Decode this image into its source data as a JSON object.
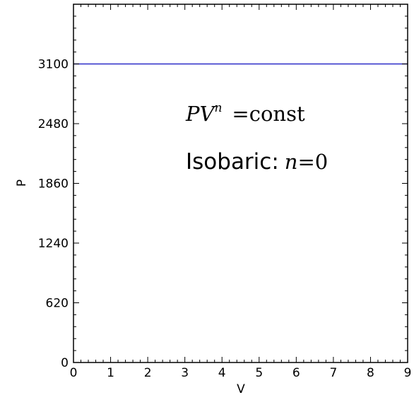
{
  "chart_data": {
    "type": "line",
    "title": "",
    "xlabel": "V",
    "ylabel": "P",
    "xlim": [
      0,
      9
    ],
    "ylim": [
      0,
      3720
    ],
    "x_ticks": [
      0,
      1,
      2,
      3,
      4,
      5,
      6,
      7,
      8,
      9
    ],
    "y_ticks": [
      0,
      620,
      1240,
      1860,
      2480,
      3100
    ],
    "grid": false,
    "legend": "none",
    "series": [
      {
        "color": "#2b2bc8",
        "x": [
          0,
          9
        ],
        "y": [
          3100,
          3100
        ]
      }
    ],
    "annotations": {
      "equation": {
        "P": "P",
        "V": "V",
        "exponent": "n",
        "rhs": "=const"
      },
      "process": {
        "label": "Isobaric:",
        "var": "n",
        "rhs": "=0"
      }
    }
  }
}
